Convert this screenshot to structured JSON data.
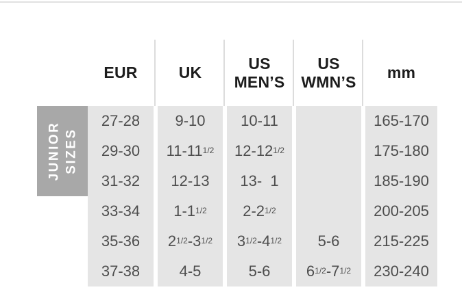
{
  "colors": {
    "cell_background": "#e5e5e5",
    "group_label_background": "#a8a8a8",
    "group_label_text": "#ffffff",
    "header_text": "#1c1c1c",
    "cell_text": "#4d4d4d",
    "top_rule": "#e1e1e1",
    "header_separator": "#dcdcdc"
  },
  "table": {
    "group_label": {
      "lines": [
        "JUNIOR",
        "SIZES"
      ]
    },
    "header_lines": [
      [
        "EUR"
      ],
      [
        "UK"
      ],
      [
        "US",
        "MEN’S"
      ],
      [
        "US",
        "WMN’S"
      ],
      [
        "mm"
      ]
    ],
    "rows": [
      [
        "27-28",
        "9-10",
        "10-11",
        "",
        "165-170"
      ],
      [
        "29-30",
        "11-11{1/2}",
        "12-12{1/2}",
        "",
        "175-180"
      ],
      [
        "31-32",
        "12-13",
        "13-  1",
        "",
        "185-190"
      ],
      [
        "33-34",
        "1-1{1/2}",
        "2-2{1/2}",
        "",
        "200-205"
      ],
      [
        "35-36",
        "2{1/2}-3{1/2}",
        "3{1/2}-4{1/2}",
        "5-6",
        "215-225"
      ],
      [
        "37-38",
        "4-5",
        "5-6",
        "6{1/2}-7{1/2}",
        "230-240"
      ]
    ]
  },
  "chart_data": {
    "type": "table",
    "title": "Junior Sizes shoe size conversion chart",
    "row_group_label": "JUNIOR SIZES",
    "columns": [
      "EUR",
      "UK",
      "US MEN’S",
      "US WMN’S",
      "mm"
    ],
    "rows": [
      [
        "27-28",
        "9-10",
        "10-11",
        "",
        "165-170"
      ],
      [
        "29-30",
        "11-11½",
        "12-12½",
        "",
        "175-180"
      ],
      [
        "31-32",
        "12-13",
        "13- 1",
        "",
        "185-190"
      ],
      [
        "33-34",
        "1-1½",
        "2-2½",
        "",
        "200-205"
      ],
      [
        "35-36",
        "2½-3½",
        "3½-4½",
        "5-6",
        "215-225"
      ],
      [
        "37-38",
        "4-5",
        "5-6",
        "6½-7½",
        "230-240"
      ]
    ],
    "layout": {
      "grid": "off",
      "group_label_rows_spanned": [
        1,
        2,
        3
      ]
    }
  }
}
